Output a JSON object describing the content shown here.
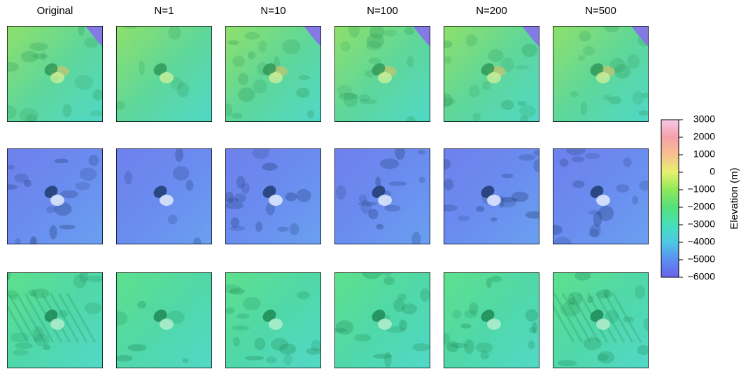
{
  "chart_data": {
    "type": "image-grid",
    "columns": [
      "Original",
      "N=1",
      "N=10",
      "N=100",
      "N=200",
      "N=500"
    ],
    "colorbar": {
      "label": "Elevation (m)",
      "lim": [
        -6000,
        3000
      ],
      "ticks": [
        3000,
        2000,
        1000,
        0,
        {
          "value": -1000,
          "label": "−1000"
        },
        {
          "value": -2000,
          "label": "−2000"
        },
        {
          "value": -3000,
          "label": "−3000"
        },
        {
          "value": -4000,
          "label": "−4000"
        },
        {
          "value": -5000,
          "label": "−5000"
        },
        {
          "value": -6000,
          "label": "−6000"
        }
      ],
      "colormap": [
        "#6a62ee",
        "#5b8ff0",
        "#4fc8e4",
        "#45e0b8",
        "#55e07a",
        "#8ee85a",
        "#e8f070",
        "#f6c090",
        "#f6a0a8",
        "#f8c8e8"
      ]
    }
  }
}
